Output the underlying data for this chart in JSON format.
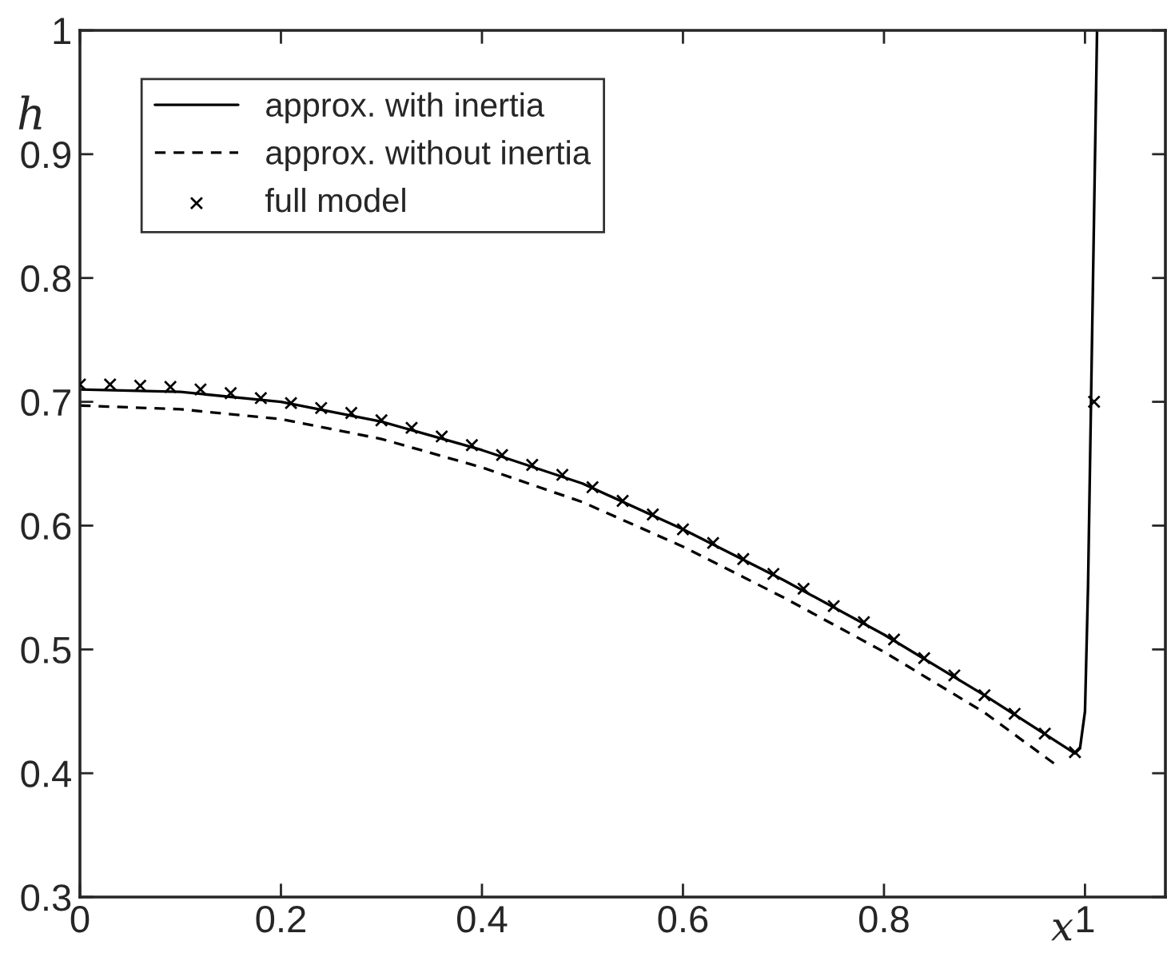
{
  "chart_data": {
    "type": "line",
    "xlabel": "x",
    "ylabel": "h",
    "xlim": [
      0,
      1.08
    ],
    "ylim": [
      0.3,
      1
    ],
    "xticks": [
      0,
      0.2,
      0.4,
      0.6,
      0.8,
      1
    ],
    "yticks": [
      0.3,
      0.4,
      0.5,
      0.6,
      0.7,
      0.8,
      0.9,
      1
    ],
    "grid": false,
    "legend": "top left",
    "series": [
      {
        "name": "approx. with inertia",
        "color": "#000000",
        "line_style": "solid",
        "marker": "none",
        "x": [
          0,
          0.1,
          0.2,
          0.3,
          0.4,
          0.5,
          0.6,
          0.7,
          0.8,
          0.9,
          0.99,
          0.995,
          1.0,
          1.003,
          1.006,
          1.01,
          1.012
        ],
        "values": [
          0.71,
          0.708,
          0.7,
          0.684,
          0.661,
          0.634,
          0.597,
          0.556,
          0.512,
          0.463,
          0.416,
          0.42,
          0.45,
          0.55,
          0.7,
          0.9,
          1.0
        ]
      },
      {
        "name": "approx. without inertia",
        "color": "#000000",
        "line_style": "dashed",
        "marker": "none",
        "x": [
          0,
          0.1,
          0.2,
          0.3,
          0.4,
          0.5,
          0.6,
          0.7,
          0.8,
          0.9,
          0.969
        ],
        "values": [
          0.697,
          0.694,
          0.686,
          0.67,
          0.647,
          0.619,
          0.583,
          0.542,
          0.498,
          0.449,
          0.408
        ]
      },
      {
        "name": "full model",
        "color": "#000000",
        "type": "scatter",
        "marker": "cross",
        "x": [
          0,
          0.03,
          0.06,
          0.09,
          0.12,
          0.15,
          0.18,
          0.21,
          0.24,
          0.27,
          0.3,
          0.33,
          0.36,
          0.39,
          0.42,
          0.45,
          0.48,
          0.51,
          0.54,
          0.57,
          0.6,
          0.63,
          0.66,
          0.69,
          0.72,
          0.75,
          0.78,
          0.81,
          0.84,
          0.87,
          0.9,
          0.93,
          0.96,
          0.99,
          1.009
        ],
        "values": [
          0.714,
          0.714,
          0.713,
          0.712,
          0.71,
          0.707,
          0.703,
          0.699,
          0.695,
          0.691,
          0.685,
          0.679,
          0.672,
          0.665,
          0.657,
          0.649,
          0.641,
          0.631,
          0.62,
          0.609,
          0.597,
          0.586,
          0.573,
          0.561,
          0.549,
          0.535,
          0.522,
          0.508,
          0.493,
          0.479,
          0.463,
          0.448,
          0.432,
          0.417,
          0.7
        ]
      }
    ]
  }
}
